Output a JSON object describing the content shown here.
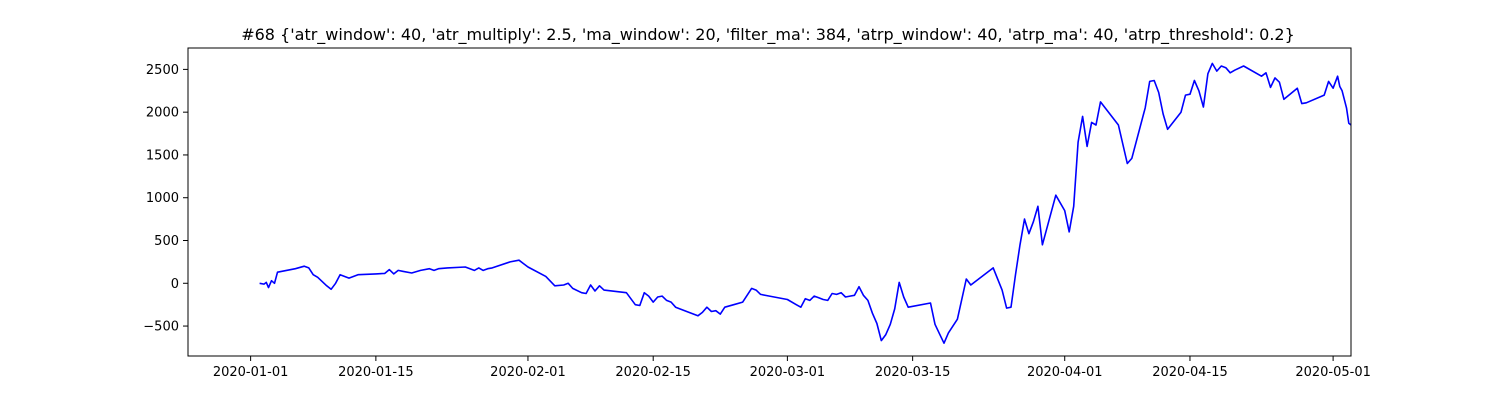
{
  "chart_data": {
    "type": "line",
    "title": "#68 {'atr_window': 40, 'atr_multiply': 2.5, 'ma_window': 20, 'filter_ma': 384, 'atrp_window': 40, 'atrp_ma': 40, 'atrp_threshold': 0.2}",
    "xlabel": "",
    "ylabel": "",
    "xlim": [
      "2019-12-25",
      "2020-05-03"
    ],
    "ylim": [
      -850,
      2750
    ],
    "x_ticks": [
      "2020-01-01",
      "2020-01-15",
      "2020-02-01",
      "2020-02-15",
      "2020-03-01",
      "2020-03-15",
      "2020-04-01",
      "2020-04-15",
      "2020-05-01"
    ],
    "y_ticks": [
      -500,
      0,
      500,
      1000,
      1500,
      2000,
      2500
    ],
    "grid": false,
    "line_color": "#0000ff",
    "series": [
      {
        "points": [
          [
            "2020-01-02",
            0
          ],
          [
            "2020-01-02 12:00",
            -10
          ],
          [
            "2020-01-02 18:00",
            10
          ],
          [
            "2020-01-03",
            -50
          ],
          [
            "2020-01-03 08:00",
            30
          ],
          [
            "2020-01-03 16:00",
            0
          ],
          [
            "2020-01-04",
            130
          ],
          [
            "2020-01-06",
            170
          ],
          [
            "2020-01-07",
            200
          ],
          [
            "2020-01-07 12:00",
            180
          ],
          [
            "2020-01-08",
            100
          ],
          [
            "2020-01-08 12:00",
            70
          ],
          [
            "2020-01-09",
            20
          ],
          [
            "2020-01-09 12:00",
            -30
          ],
          [
            "2020-01-10",
            -70
          ],
          [
            "2020-01-10 12:00",
            0
          ],
          [
            "2020-01-11",
            100
          ],
          [
            "2020-01-12",
            60
          ],
          [
            "2020-01-13",
            100
          ],
          [
            "2020-01-15",
            110
          ],
          [
            "2020-01-16",
            115
          ],
          [
            "2020-01-16 12:00",
            160
          ],
          [
            "2020-01-17",
            110
          ],
          [
            "2020-01-17 12:00",
            150
          ],
          [
            "2020-01-18",
            140
          ],
          [
            "2020-01-19",
            120
          ],
          [
            "2020-01-20",
            150
          ],
          [
            "2020-01-21",
            170
          ],
          [
            "2020-01-21 12:00",
            150
          ],
          [
            "2020-01-22",
            170
          ],
          [
            "2020-01-23",
            180
          ],
          [
            "2020-01-25",
            190
          ],
          [
            "2020-01-26",
            150
          ],
          [
            "2020-01-26 12:00",
            180
          ],
          [
            "2020-01-27",
            150
          ],
          [
            "2020-01-27 12:00",
            170
          ],
          [
            "2020-01-28",
            180
          ],
          [
            "2020-01-30",
            250
          ],
          [
            "2020-01-31",
            270
          ],
          [
            "2020-01-31 12:00",
            230
          ],
          [
            "2020-02-01",
            190
          ],
          [
            "2020-02-03",
            80
          ],
          [
            "2020-02-04",
            -30
          ],
          [
            "2020-02-05",
            -20
          ],
          [
            "2020-02-05 12:00",
            0
          ],
          [
            "2020-02-06",
            -60
          ],
          [
            "2020-02-07",
            -110
          ],
          [
            "2020-02-07 12:00",
            -120
          ],
          [
            "2020-02-08",
            -20
          ],
          [
            "2020-02-08 12:00",
            -90
          ],
          [
            "2020-02-09",
            -30
          ],
          [
            "2020-02-09 12:00",
            -80
          ],
          [
            "2020-02-12",
            -110
          ],
          [
            "2020-02-13",
            -250
          ],
          [
            "2020-02-13 12:00",
            -260
          ],
          [
            "2020-02-14",
            -110
          ],
          [
            "2020-02-14 12:00",
            -150
          ],
          [
            "2020-02-15",
            -220
          ],
          [
            "2020-02-15 12:00",
            -160
          ],
          [
            "2020-02-16",
            -150
          ],
          [
            "2020-02-16 12:00",
            -200
          ],
          [
            "2020-02-17",
            -220
          ],
          [
            "2020-02-17 12:00",
            -280
          ],
          [
            "2020-02-19",
            -340
          ],
          [
            "2020-02-20",
            -380
          ],
          [
            "2020-02-20 12:00",
            -340
          ],
          [
            "2020-02-21",
            -280
          ],
          [
            "2020-02-21 12:00",
            -330
          ],
          [
            "2020-02-22",
            -320
          ],
          [
            "2020-02-22 12:00",
            -360
          ],
          [
            "2020-02-23",
            -280
          ],
          [
            "2020-02-24",
            -250
          ],
          [
            "2020-02-25",
            -220
          ],
          [
            "2020-02-26",
            -60
          ],
          [
            "2020-02-26 12:00",
            -80
          ],
          [
            "2020-02-27",
            -130
          ],
          [
            "2020-02-28",
            -150
          ],
          [
            "2020-03-01",
            -190
          ],
          [
            "2020-03-02",
            -250
          ],
          [
            "2020-03-02 12:00",
            -280
          ],
          [
            "2020-03-03",
            -180
          ],
          [
            "2020-03-03 12:00",
            -200
          ],
          [
            "2020-03-04",
            -150
          ],
          [
            "2020-03-04 12:00",
            -170
          ],
          [
            "2020-03-05",
            -190
          ],
          [
            "2020-03-05 12:00",
            -200
          ],
          [
            "2020-03-06",
            -120
          ],
          [
            "2020-03-06 12:00",
            -130
          ],
          [
            "2020-03-07",
            -110
          ],
          [
            "2020-03-07 12:00",
            -160
          ],
          [
            "2020-03-08",
            -150
          ],
          [
            "2020-03-08 12:00",
            -140
          ],
          [
            "2020-03-09",
            -40
          ],
          [
            "2020-03-09 12:00",
            -140
          ],
          [
            "2020-03-10",
            -200
          ],
          [
            "2020-03-10 12:00",
            -350
          ],
          [
            "2020-03-11",
            -470
          ],
          [
            "2020-03-11 12:00",
            -670
          ],
          [
            "2020-03-12",
            -600
          ],
          [
            "2020-03-12 12:00",
            -480
          ],
          [
            "2020-03-13",
            -300
          ],
          [
            "2020-03-13 12:00",
            10
          ],
          [
            "2020-03-14",
            -160
          ],
          [
            "2020-03-14 12:00",
            -280
          ],
          [
            "2020-03-17",
            -230
          ],
          [
            "2020-03-17 12:00",
            -480
          ],
          [
            "2020-03-18",
            -590
          ],
          [
            "2020-03-18 12:00",
            -700
          ],
          [
            "2020-03-19",
            -580
          ],
          [
            "2020-03-20",
            -420
          ],
          [
            "2020-03-21",
            50
          ],
          [
            "2020-03-21 12:00",
            -20
          ],
          [
            "2020-03-24",
            180
          ],
          [
            "2020-03-25",
            -80
          ],
          [
            "2020-03-25 12:00",
            -290
          ],
          [
            "2020-03-26",
            -280
          ],
          [
            "2020-03-26 12:00",
            100
          ],
          [
            "2020-03-27",
            450
          ],
          [
            "2020-03-27 12:00",
            750
          ],
          [
            "2020-03-28",
            580
          ],
          [
            "2020-03-28 12:00",
            720
          ],
          [
            "2020-03-29",
            900
          ],
          [
            "2020-03-29 12:00",
            450
          ],
          [
            "2020-03-31",
            1030
          ],
          [
            "2020-04-01",
            850
          ],
          [
            "2020-04-01 12:00",
            600
          ],
          [
            "2020-04-02",
            900
          ],
          [
            "2020-04-02 12:00",
            1650
          ],
          [
            "2020-04-03",
            1950
          ],
          [
            "2020-04-03 12:00",
            1600
          ],
          [
            "2020-04-04",
            1880
          ],
          [
            "2020-04-04 12:00",
            1850
          ],
          [
            "2020-04-05",
            2120
          ],
          [
            "2020-04-07",
            1850
          ],
          [
            "2020-04-08",
            1400
          ],
          [
            "2020-04-08 12:00",
            1460
          ],
          [
            "2020-04-10",
            2050
          ],
          [
            "2020-04-10 12:00",
            2360
          ],
          [
            "2020-04-11",
            2370
          ],
          [
            "2020-04-11 12:00",
            2230
          ],
          [
            "2020-04-12",
            1980
          ],
          [
            "2020-04-12 12:00",
            1800
          ],
          [
            "2020-04-14",
            2000
          ],
          [
            "2020-04-14 12:00",
            2200
          ],
          [
            "2020-04-15",
            2210
          ],
          [
            "2020-04-15 12:00",
            2370
          ],
          [
            "2020-04-16",
            2250
          ],
          [
            "2020-04-16 12:00",
            2060
          ],
          [
            "2020-04-17",
            2450
          ],
          [
            "2020-04-17 12:00",
            2570
          ],
          [
            "2020-04-18",
            2480
          ],
          [
            "2020-04-18 12:00",
            2540
          ],
          [
            "2020-04-19",
            2520
          ],
          [
            "2020-04-19 12:00",
            2460
          ],
          [
            "2020-04-20",
            2490
          ],
          [
            "2020-04-21",
            2540
          ],
          [
            "2020-04-23",
            2420
          ],
          [
            "2020-04-23 12:00",
            2460
          ],
          [
            "2020-04-24",
            2290
          ],
          [
            "2020-04-24 12:00",
            2400
          ],
          [
            "2020-04-25",
            2350
          ],
          [
            "2020-04-25 12:00",
            2150
          ],
          [
            "2020-04-27",
            2280
          ],
          [
            "2020-04-27 12:00",
            2100
          ],
          [
            "2020-04-28",
            2110
          ],
          [
            "2020-04-30",
            2200
          ],
          [
            "2020-04-30 12:00",
            2360
          ],
          [
            "2020-05-01",
            2280
          ],
          [
            "2020-05-01 12:00",
            2420
          ],
          [
            "2020-05-01 18:00",
            2300
          ],
          [
            "2020-05-02",
            2250
          ],
          [
            "2020-05-02 12:00",
            2050
          ],
          [
            "2020-05-02 18:00",
            1870
          ],
          [
            "2020-05-03",
            1850
          ]
        ]
      }
    ]
  }
}
